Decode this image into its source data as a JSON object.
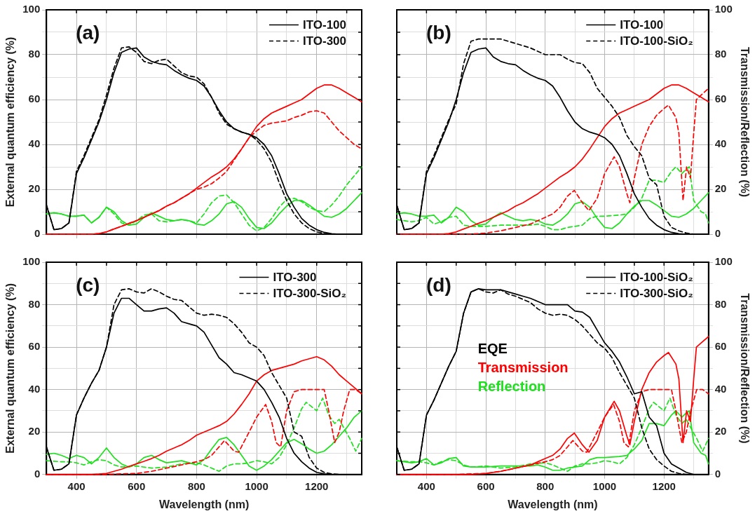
{
  "chart_data": [
    {
      "type": "line",
      "title": "(a)",
      "ylabel": "External quantum efficiency (%)",
      "legend": "top right",
      "grid": true,
      "marker": "none",
      "line_style": "solid",
      "tick_labels": "y",
      "x": [
        300,
        325,
        350,
        375,
        400,
        425,
        450,
        475,
        500,
        525,
        550,
        575,
        600,
        625,
        650,
        675,
        700,
        725,
        750,
        775,
        800,
        825,
        850,
        875,
        900,
        925,
        950,
        975,
        1000,
        1025,
        1050,
        1075,
        1100,
        1125,
        1150,
        1175,
        1200,
        1225,
        1250,
        1275,
        1300,
        1325,
        1350
      ],
      "xlim": [
        300,
        1350
      ],
      "xticks": [
        400,
        {
          "value": 500,
          "label": null
        },
        600,
        {
          "value": 700,
          "label": null
        },
        800,
        {
          "value": 900,
          "label": null
        },
        1000,
        {
          "value": 1100,
          "label": null
        },
        1200,
        {
          "value": 1300,
          "label": null
        }
      ],
      "ylim": [
        0,
        100
      ],
      "yticks": [
        0,
        {
          "value": 10,
          "label": null
        },
        20,
        {
          "value": 30,
          "label": null
        },
        40,
        {
          "value": 50,
          "label": null
        },
        60,
        {
          "value": 70,
          "label": null
        },
        80,
        {
          "value": 90,
          "label": null
        },
        100
      ],
      "series": [
        {
          "name": "ITO-100",
          "color": "#000000",
          "values": [
            13,
            2,
            2.5,
            5,
            27,
            34,
            42,
            50,
            60,
            72,
            81,
            82.5,
            83,
            79,
            77,
            76,
            75.5,
            73,
            71,
            69.5,
            68.5,
            66,
            61,
            55,
            50,
            47,
            45.5,
            44.5,
            43,
            40,
            35,
            27,
            18,
            12,
            7,
            4,
            2,
            0.8,
            0.2,
            0,
            0,
            0,
            0
          ]
        },
        {
          "name": "ITO-300",
          "color": "#000000",
          "line_style": "dashed",
          "values": [
            13,
            2,
            2.5,
            5,
            28,
            35,
            43,
            51,
            62,
            74,
            83,
            83.5,
            81,
            77,
            76,
            77.5,
            78,
            75,
            72,
            70.5,
            70,
            67,
            61,
            54,
            49,
            47,
            45.5,
            44.5,
            42,
            38,
            32,
            23,
            15,
            9,
            5,
            2.5,
            1,
            0.3,
            0,
            0,
            0,
            0,
            0
          ]
        },
        {
          "color": "#ff0000",
          "values": [
            0,
            0,
            0,
            0,
            0,
            0,
            0,
            0.3,
            1,
            2.3,
            3.5,
            4.8,
            6,
            7.5,
            9,
            10.5,
            12.5,
            14,
            16,
            18,
            20.5,
            23,
            25.5,
            27.5,
            30,
            33.5,
            38,
            43,
            48,
            51.5,
            54,
            55.5,
            57,
            58.5,
            60,
            62.5,
            65,
            66.5,
            66.5,
            65,
            63,
            61,
            59
          ]
        },
        {
          "color": "#ff0000",
          "line_style": "dashed",
          "values": [
            0,
            0,
            0,
            0,
            0,
            0,
            0,
            0.3,
            1,
            2.3,
            3.5,
            4.8,
            6,
            7.5,
            9,
            10.5,
            12.5,
            14,
            16,
            18,
            20,
            21,
            22.5,
            25,
            28,
            33,
            38,
            43,
            46,
            48.5,
            49.5,
            50,
            50.5,
            52,
            53,
            54.5,
            55,
            54,
            50,
            46,
            43,
            40,
            38
          ]
        },
        {
          "color": "#1ee01e",
          "values": [
            9,
            9.5,
            9,
            8,
            8,
            8.5,
            5,
            7.5,
            12,
            10,
            6,
            4,
            4.5,
            7.5,
            9.5,
            8,
            6.5,
            6,
            6.5,
            6,
            4.5,
            4,
            6,
            9,
            13.5,
            14.5,
            12,
            7,
            3,
            2.5,
            5,
            9,
            12.5,
            15,
            15,
            13,
            10.5,
            8,
            7.5,
            9,
            11.5,
            15,
            18.5
          ]
        },
        {
          "color": "#1ee01e",
          "line_style": "dashed",
          "values": [
            9,
            9.5,
            9,
            8,
            8,
            8.5,
            5,
            7.5,
            12,
            9,
            5,
            4,
            6,
            8.5,
            9,
            6,
            5.5,
            6,
            6.5,
            6,
            5,
            9,
            14,
            17,
            17.5,
            14,
            9,
            4,
            1.5,
            3,
            7,
            12,
            15.5,
            16,
            14.5,
            12,
            10.5,
            10,
            13,
            17,
            22,
            26,
            30
          ]
        }
      ]
    },
    {
      "type": "line",
      "title": "(b)",
      "y2label": "Transmission/Reflection (%)",
      "legend": "top right",
      "grid": true,
      "marker": "none",
      "line_style": "solid",
      "tick_labels": "y",
      "x": [
        300,
        325,
        350,
        375,
        400,
        425,
        450,
        475,
        500,
        525,
        550,
        575,
        600,
        625,
        650,
        675,
        700,
        725,
        750,
        775,
        800,
        825,
        850,
        875,
        900,
        925,
        950,
        975,
        1000,
        1025,
        1050,
        1075,
        1100,
        1125,
        1150,
        1175,
        1200,
        1225,
        1250,
        1275,
        1300,
        1325,
        1350
      ],
      "xlim": [
        300,
        1350
      ],
      "xticks": [
        400,
        {
          "value": 500,
          "label": null
        },
        600,
        {
          "value": 700,
          "label": null
        },
        800,
        {
          "value": 900,
          "label": null
        },
        1000,
        {
          "value": 1100,
          "label": null
        },
        1200,
        {
          "value": 1300,
          "label": null
        }
      ],
      "y2lim": [
        0,
        100
      ],
      "y2ticks": [
        0,
        {
          "value": 10,
          "label": null
        },
        20,
        {
          "value": 30,
          "label": null
        },
        40,
        {
          "value": 50,
          "label": null
        },
        60,
        {
          "value": 70,
          "label": null
        },
        80,
        {
          "value": 90,
          "label": null
        },
        100
      ],
      "series": [
        {
          "name": "ITO-100",
          "color": "#000000",
          "axis": "y2",
          "values": [
            13,
            2,
            2.5,
            5,
            27,
            34,
            42,
            50,
            60,
            72,
            81,
            82.5,
            83,
            79,
            77,
            76,
            75.5,
            73,
            71,
            69.5,
            68.5,
            66,
            61,
            55,
            50,
            47,
            45.5,
            44.5,
            43,
            40,
            35,
            27,
            18,
            12,
            7,
            4,
            2,
            0.8,
            0.2,
            0,
            0,
            0,
            0
          ]
        },
        {
          "name": "ITO-100-SiO₂",
          "color": "#000000",
          "axis": "y2",
          "line_style": "dashed",
          "values": [
            13,
            2,
            2.5,
            5,
            28,
            35,
            43,
            51,
            58,
            76,
            86,
            87,
            87,
            87,
            87,
            86,
            85,
            84,
            83,
            81.5,
            80,
            80,
            80,
            78,
            76.5,
            76,
            72,
            65,
            61,
            57,
            52,
            44,
            39,
            35,
            25,
            22,
            8,
            3,
            1.5,
            0.5,
            0,
            0,
            0
          ]
        },
        {
          "color": "#ff0000",
          "axis": "y2",
          "values": [
            0,
            0,
            0,
            0,
            0,
            0,
            0,
            0.3,
            1,
            2.3,
            3.5,
            4.8,
            6,
            7.5,
            9,
            10.5,
            12.5,
            14,
            16,
            18,
            20.5,
            23,
            25.5,
            27.5,
            30,
            33.5,
            38,
            43,
            48,
            51.5,
            54,
            55.5,
            57,
            58.5,
            60,
            62.5,
            65,
            66.5,
            66.5,
            65,
            63,
            61,
            59
          ]
        },
        {
          "color": "#ff0000",
          "axis": "y2",
          "line_style": "dashed",
          "x": [
            300,
            550,
            600,
            650,
            700,
            750,
            775,
            800,
            825,
            850,
            875,
            898,
            925,
            947,
            975,
            1000,
            1032,
            1050,
            1075,
            1085,
            1100,
            1125,
            1150,
            1175,
            1200,
            1215,
            1240,
            1250,
            1264,
            1276,
            1289,
            1300,
            1309,
            1325,
            1350
          ],
          "values": [
            0,
            0,
            0.5,
            1.5,
            3,
            4.5,
            6,
            7.5,
            9,
            12,
            17,
            19.5,
            14,
            10.5,
            16,
            27,
            34.5,
            30,
            18,
            14,
            25,
            40,
            48,
            53,
            56,
            57.5,
            52,
            45,
            15,
            30,
            25,
            45,
            60,
            62,
            65
          ]
        },
        {
          "color": "#1ee01e",
          "axis": "y2",
          "values": [
            9,
            9.5,
            9,
            8,
            8,
            8.5,
            5,
            7.5,
            12,
            10,
            6,
            4,
            4.5,
            7.5,
            9.5,
            8,
            6.5,
            6,
            6.5,
            6,
            4.5,
            4,
            6,
            9,
            13.5,
            14.5,
            12,
            7,
            3,
            2.5,
            5,
            9,
            12.5,
            15,
            15,
            13,
            10.5,
            8,
            7.5,
            9,
            11.5,
            15,
            18.5
          ]
        },
        {
          "color": "#1ee01e",
          "axis": "y2",
          "line_style": "dashed",
          "x": [
            300,
            350,
            375,
            400,
            425,
            450,
            475,
            500,
            525,
            550,
            600,
            650,
            700,
            750,
            775,
            800,
            825,
            850,
            875,
            900,
            925,
            950,
            975,
            1000,
            1050,
            1075,
            1100,
            1125,
            1150,
            1175,
            1200,
            1225,
            1240,
            1260,
            1275,
            1285,
            1300,
            1325,
            1340,
            1350
          ],
          "values": [
            6.5,
            5.5,
            6,
            7.5,
            4.5,
            5.5,
            7.5,
            8,
            4,
            3.5,
            3.5,
            4,
            4,
            4,
            4.5,
            3.5,
            2,
            2,
            3,
            3.5,
            4,
            7,
            8,
            8,
            8.5,
            9,
            12,
            16,
            24,
            24,
            23,
            28,
            30,
            27,
            29,
            30,
            15,
            10,
            9,
            5
          ]
        }
      ]
    },
    {
      "type": "line",
      "title": "(c)",
      "ylabel": "External quantum efficiency (%)",
      "xlabel": "Wavelength (nm)",
      "legend": "top right",
      "grid": true,
      "marker": "none",
      "line_style": "solid",
      "x": [
        300,
        325,
        350,
        375,
        400,
        425,
        450,
        475,
        500,
        525,
        550,
        575,
        600,
        625,
        650,
        675,
        700,
        725,
        750,
        775,
        800,
        825,
        850,
        875,
        900,
        925,
        950,
        975,
        1000,
        1025,
        1050,
        1075,
        1100,
        1125,
        1150,
        1175,
        1200,
        1225,
        1250,
        1275,
        1300,
        1325,
        1350
      ],
      "xlim": [
        300,
        1350
      ],
      "xticks": [
        400,
        {
          "value": 500,
          "label": null
        },
        600,
        {
          "value": 700,
          "label": null
        },
        800,
        {
          "value": 900,
          "label": null
        },
        1000,
        {
          "value": 1100,
          "label": null
        },
        1200,
        {
          "value": 1300,
          "label": null
        }
      ],
      "ylim": [
        0,
        100
      ],
      "yticks": [
        0,
        {
          "value": 10,
          "label": null
        },
        20,
        {
          "value": 30,
          "label": null
        },
        40,
        {
          "value": 50,
          "label": null
        },
        60,
        {
          "value": 70,
          "label": null
        },
        80,
        {
          "value": 90,
          "label": null
        },
        100
      ],
      "series": [
        {
          "name": "ITO-300",
          "color": "#000000",
          "values": [
            13,
            2,
            2.5,
            5,
            28,
            36,
            43,
            49,
            60,
            76,
            83,
            83,
            80,
            77,
            77,
            78,
            78.5,
            76,
            72,
            71,
            70,
            67,
            61,
            55,
            52,
            48,
            47,
            45.5,
            44,
            40,
            34,
            27,
            17,
            10,
            6,
            3,
            1,
            0.3,
            0,
            0,
            0,
            0,
            0
          ]
        },
        {
          "name": "ITO-300-SiO₂",
          "color": "#000000",
          "line_style": "dashed",
          "values": [
            13,
            2,
            2.5,
            5,
            28,
            36,
            43,
            49,
            60,
            80,
            87,
            87.5,
            86,
            85.5,
            87.5,
            86,
            84,
            82.5,
            82,
            79,
            76,
            75,
            75.5,
            75,
            74,
            71,
            67,
            62,
            60,
            56,
            48,
            42,
            36,
            20,
            18,
            8,
            3,
            1,
            0.3,
            0,
            0,
            0,
            0
          ]
        },
        {
          "color": "#ff0000",
          "values": [
            0,
            0,
            0,
            0,
            0,
            0,
            0,
            0.2,
            0.5,
            1.5,
            2.5,
            3.8,
            5,
            6.2,
            7.5,
            9,
            11,
            12.5,
            14,
            16,
            18.5,
            20,
            21.5,
            23,
            25,
            28.5,
            33,
            38,
            44,
            47,
            49,
            50,
            51,
            52,
            53.5,
            54.5,
            55.5,
            54,
            51,
            47,
            44,
            41,
            38
          ]
        },
        {
          "color": "#ff0000",
          "line_style": "dashed",
          "x": [
            300,
            500,
            550,
            600,
            650,
            700,
            750,
            800,
            825,
            850,
            875,
            893,
            925,
            940,
            975,
            1000,
            1030,
            1050,
            1065,
            1080,
            1100,
            1125,
            1150,
            1200,
            1225,
            1240,
            1260,
            1275,
            1290,
            1310,
            1330,
            1350
          ],
          "values": [
            0,
            0,
            0.3,
            0.5,
            1.5,
            3,
            4.5,
            6,
            7,
            9,
            13,
            16,
            11,
            10.5,
            20,
            27,
            33,
            25,
            15,
            13,
            30,
            39,
            40,
            40,
            40,
            30,
            15,
            20,
            30,
            40,
            40,
            38
          ]
        },
        {
          "color": "#1ee01e",
          "values": [
            9.5,
            10,
            9,
            7.5,
            9,
            8,
            5,
            8,
            12.5,
            8,
            5,
            3.5,
            5,
            8,
            9,
            7,
            5.5,
            6,
            6.5,
            5.5,
            4.5,
            7,
            12,
            16.5,
            17.5,
            14,
            9,
            4,
            2,
            4,
            7,
            11,
            15,
            16.5,
            14.5,
            12,
            10,
            11,
            14,
            18,
            22,
            27,
            30
          ]
        },
        {
          "color": "#1ee01e",
          "line_style": "dashed",
          "x": [
            300,
            350,
            375,
            400,
            425,
            450,
            475,
            500,
            525,
            550,
            600,
            650,
            700,
            750,
            800,
            825,
            850,
            875,
            900,
            925,
            950,
            975,
            1000,
            1025,
            1050,
            1075,
            1100,
            1125,
            1150,
            1165,
            1200,
            1220,
            1240,
            1260,
            1275,
            1290,
            1310,
            1330,
            1350
          ],
          "values": [
            6.5,
            6,
            6,
            5.5,
            4.5,
            6,
            7,
            6.5,
            4.5,
            3.5,
            4,
            3,
            3.5,
            5,
            5.5,
            4.5,
            3,
            1.5,
            4,
            5,
            5,
            5.5,
            6.5,
            6,
            5,
            8,
            14,
            22,
            31,
            34,
            30,
            36,
            28,
            24,
            26,
            22,
            17,
            11,
            17
          ]
        }
      ]
    },
    {
      "type": "line",
      "title": "(d)",
      "xlabel": "Wavelength (nm)",
      "y2label": "Transmission/Reflection (%)",
      "legend": "top right",
      "grid": true,
      "marker": "none",
      "line_style": "solid",
      "annotations": [
        "EQE",
        "Transmission",
        "Reflection"
      ],
      "x": [
        300,
        325,
        350,
        375,
        400,
        425,
        450,
        475,
        500,
        525,
        550,
        575,
        600,
        625,
        650,
        675,
        700,
        725,
        750,
        775,
        800,
        825,
        850,
        875,
        900,
        925,
        950,
        975,
        1000,
        1025,
        1050,
        1075,
        1100,
        1125,
        1150,
        1175,
        1200,
        1225,
        1250,
        1275,
        1300,
        1325,
        1350
      ],
      "xlim": [
        300,
        1350
      ],
      "xticks": [
        400,
        {
          "value": 500,
          "label": null
        },
        600,
        {
          "value": 700,
          "label": null
        },
        800,
        {
          "value": 900,
          "label": null
        },
        1000,
        {
          "value": 1100,
          "label": null
        },
        1200,
        {
          "value": 1300,
          "label": null
        }
      ],
      "y2lim": [
        0,
        100
      ],
      "y2ticks": [
        0,
        {
          "value": 10,
          "label": null
        },
        20,
        {
          "value": 30,
          "label": null
        },
        40,
        {
          "value": 50,
          "label": null
        },
        60,
        {
          "value": 70,
          "label": null
        },
        80,
        {
          "value": 90,
          "label": null
        },
        100
      ],
      "series": [
        {
          "name": "ITO-100-SiO₂",
          "color": "#000000",
          "axis": "y2",
          "values": [
            13,
            2,
            2.5,
            5,
            28,
            35,
            43,
            51,
            58,
            76,
            86,
            87.5,
            87,
            87,
            87,
            86,
            85,
            84,
            83,
            81.5,
            80,
            80,
            80,
            80,
            77,
            76.5,
            74,
            68,
            62,
            58,
            53,
            46,
            38,
            39,
            27,
            23,
            10,
            5,
            3,
            1,
            0,
            0,
            0
          ]
        },
        {
          "name": "ITO-300-SiO₂",
          "color": "#000000",
          "axis": "y2",
          "line_style": "dashed",
          "values": [
            13,
            2,
            2.5,
            5,
            28,
            35,
            43,
            51,
            58,
            76,
            86,
            87.5,
            86,
            85.5,
            87,
            85,
            84,
            82.5,
            81,
            78,
            76,
            75,
            75.5,
            75,
            73,
            70,
            66,
            62,
            59.5,
            55,
            48,
            42,
            36,
            22,
            12,
            7,
            4,
            1.5,
            0.5,
            0,
            0,
            0,
            0
          ]
        },
        {
          "color": "#ff0000",
          "axis": "y2",
          "x": [
            300,
            550,
            600,
            650,
            700,
            750,
            775,
            800,
            825,
            850,
            875,
            898,
            925,
            947,
            975,
            1000,
            1032,
            1050,
            1075,
            1085,
            1100,
            1125,
            1150,
            1175,
            1200,
            1215,
            1240,
            1250,
            1264,
            1276,
            1289,
            1300,
            1309,
            1325,
            1350
          ],
          "values": [
            0,
            0,
            0.5,
            1.5,
            3,
            4.5,
            6,
            7.5,
            9,
            12,
            17,
            19.5,
            14,
            10.5,
            16,
            27,
            34.5,
            30,
            18,
            14,
            25,
            40,
            48,
            53,
            56,
            57.5,
            52,
            45,
            15,
            30,
            25,
            45,
            60,
            62,
            65
          ]
        },
        {
          "color": "#ff0000",
          "axis": "y2",
          "line_style": "dashed",
          "x": [
            300,
            500,
            550,
            600,
            650,
            700,
            750,
            800,
            825,
            850,
            875,
            893,
            925,
            940,
            975,
            1000,
            1030,
            1050,
            1065,
            1080,
            1100,
            1125,
            1150,
            1200,
            1225,
            1240,
            1260,
            1275,
            1290,
            1310,
            1330,
            1350
          ],
          "values": [
            0,
            0,
            0.3,
            0.5,
            1.5,
            3,
            4.5,
            6,
            7,
            9,
            13,
            16,
            11,
            10.5,
            20,
            27,
            33,
            25,
            15,
            13,
            30,
            39,
            40,
            40,
            40,
            30,
            15,
            20,
            30,
            40,
            40,
            38
          ]
        },
        {
          "color": "#1ee01e",
          "axis": "y2",
          "x": [
            300,
            350,
            375,
            400,
            425,
            450,
            475,
            500,
            525,
            550,
            600,
            650,
            700,
            750,
            775,
            800,
            825,
            850,
            875,
            900,
            925,
            950,
            975,
            1000,
            1050,
            1075,
            1100,
            1125,
            1150,
            1175,
            1200,
            1225,
            1240,
            1260,
            1275,
            1285,
            1300,
            1325,
            1340,
            1350
          ],
          "values": [
            6.5,
            5.5,
            6,
            7.5,
            4.5,
            5.5,
            7.5,
            8,
            4,
            3.5,
            3.5,
            4,
            4,
            4,
            4.5,
            3.5,
            2,
            2,
            3,
            3.5,
            4,
            7,
            8,
            8,
            8.5,
            9,
            12,
            16,
            24,
            24,
            23,
            28,
            30,
            27,
            29,
            30,
            15,
            10,
            9,
            5
          ]
        },
        {
          "color": "#1ee01e",
          "axis": "y2",
          "line_style": "dashed",
          "x": [
            300,
            350,
            375,
            400,
            425,
            450,
            475,
            500,
            525,
            550,
            600,
            650,
            700,
            750,
            800,
            825,
            850,
            875,
            900,
            925,
            950,
            975,
            1000,
            1025,
            1050,
            1075,
            1100,
            1125,
            1150,
            1165,
            1200,
            1220,
            1240,
            1260,
            1275,
            1290,
            1310,
            1330,
            1350
          ],
          "values": [
            6.5,
            6,
            6,
            5.5,
            4.5,
            6,
            7,
            6.5,
            4.5,
            3.5,
            4,
            3,
            3.5,
            5,
            5.5,
            4.5,
            3,
            1.5,
            4,
            5,
            5,
            5.5,
            6.5,
            6,
            5,
            8,
            14,
            22,
            31,
            34,
            30,
            36,
            28,
            24,
            26,
            22,
            17,
            11,
            17
          ]
        }
      ]
    }
  ]
}
